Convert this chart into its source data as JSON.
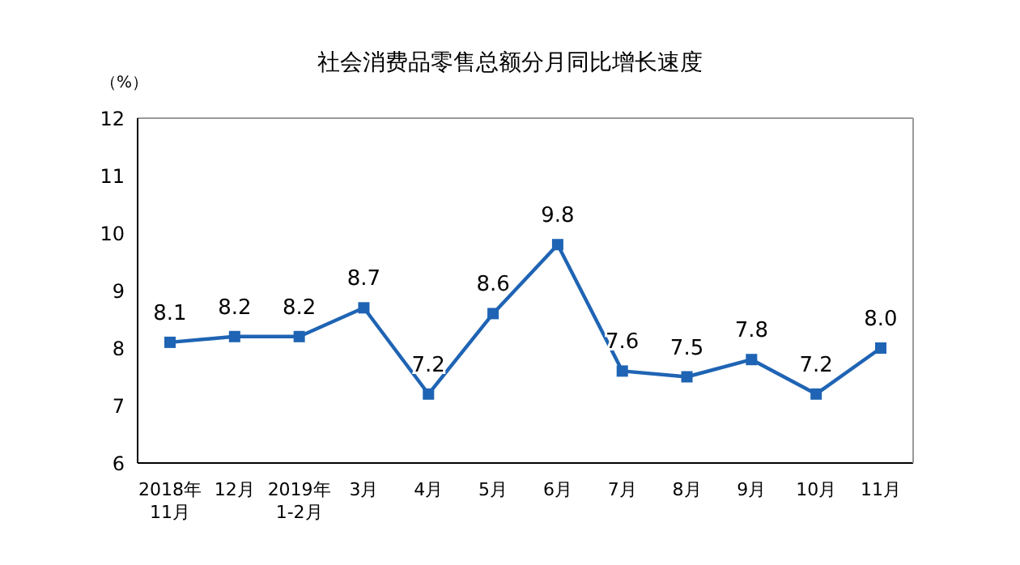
{
  "chart_data": {
    "type": "line",
    "title": "社会消费品零售总额分月同比增长速度",
    "ylabel": "（%）",
    "categories": [
      "2018年\n11月",
      "12月",
      "2019年\n1-2月",
      "3月",
      "4月",
      "5月",
      "6月",
      "7月",
      "8月",
      "9月",
      "10月",
      "11月"
    ],
    "series": [
      {
        "color": "#1f64b4",
        "values": [
          8.1,
          8.2,
          8.2,
          8.7,
          7.2,
          8.6,
          9.8,
          7.6,
          7.5,
          7.8,
          7.2,
          8.0
        ],
        "value_labels": [
          "8.1",
          "8.2",
          "8.2",
          "8.7",
          "7.2",
          "8.6",
          "9.8",
          "7.6",
          "7.5",
          "7.8",
          "7.2",
          "8.0"
        ]
      }
    ],
    "ylim": [
      6,
      12
    ],
    "yticks": [
      6,
      7,
      8,
      9,
      10,
      11,
      12
    ],
    "grid": false,
    "legend": false,
    "marker": "square",
    "line_style": "solid"
  }
}
